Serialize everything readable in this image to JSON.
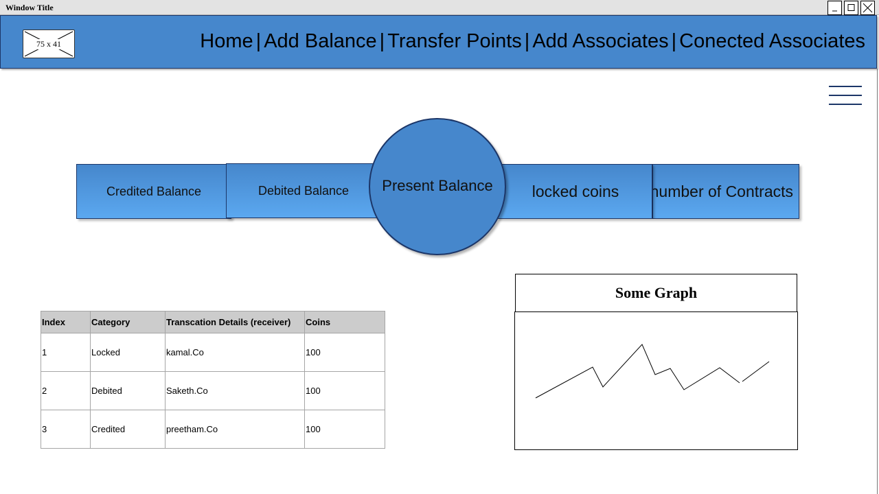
{
  "window": {
    "title": "Window Title"
  },
  "header": {
    "logo_placeholder": "75 x 41",
    "nav": [
      "Home",
      "Add Balance",
      "Transfer Points",
      "Add Associates",
      "Conected Associates"
    ],
    "nav_separator": "|"
  },
  "summary": {
    "credited": "Credited Balance",
    "debited": "Debited Balance",
    "present": "Present Balance",
    "locked": "locked coins",
    "contracts": "number of Contracts"
  },
  "table": {
    "headers": [
      "Index",
      "Category",
      "Transcation Details (receiver)",
      "Coins"
    ],
    "rows": [
      [
        "1",
        "Locked",
        "kamal.Co",
        "100"
      ],
      [
        "2",
        "Debited",
        "Saketh.Co",
        "100"
      ],
      [
        "3",
        "Credited",
        "preetham.Co",
        "100"
      ]
    ]
  },
  "graph": {
    "title": "Some Graph"
  },
  "colors": {
    "primary": "#4687cc",
    "border": "#1c3668",
    "table_header": "#cccccc"
  },
  "icons": [
    "minimize-icon",
    "maximize-icon",
    "close-icon",
    "hamburger-menu-icon",
    "image-placeholder-icon"
  ]
}
